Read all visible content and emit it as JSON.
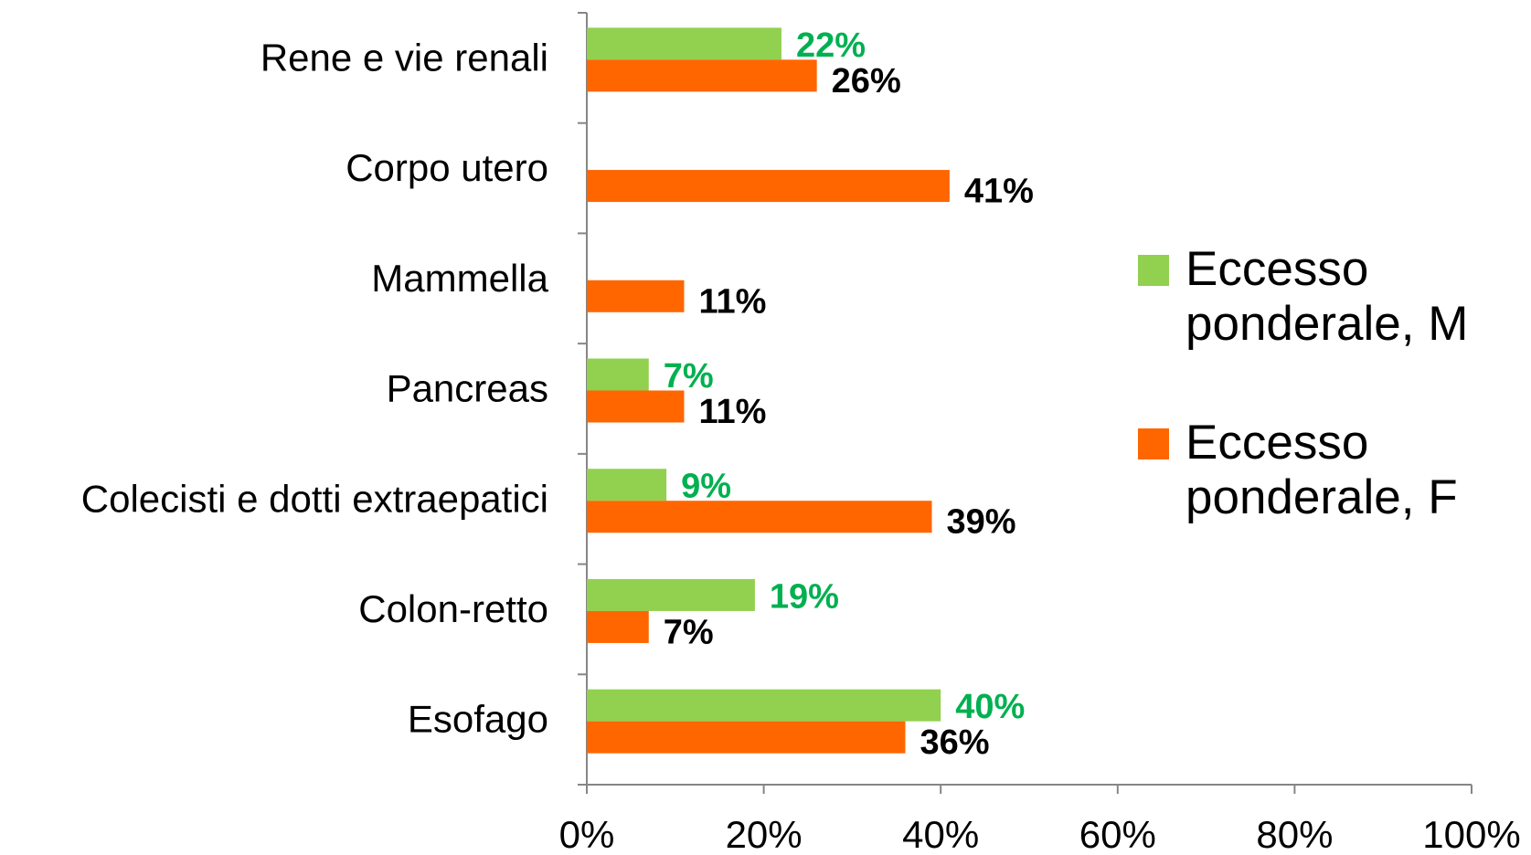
{
  "chart_data": {
    "type": "barh",
    "categories": [
      "Rene e vie renali",
      "Corpo utero",
      "Mammella",
      "Pancreas",
      "Colecisti e dotti extraepatici",
      "Colon-retto",
      "Esofago"
    ],
    "series": [
      {
        "name": "Eccesso ponderale, M",
        "color": "#92d050",
        "label_color": "#00b050",
        "values": [
          22,
          null,
          null,
          7,
          9,
          19,
          40
        ],
        "value_labels": [
          "22%",
          null,
          null,
          "7%",
          "9%",
          "19%",
          "40%"
        ]
      },
      {
        "name": "Eccesso ponderale, F",
        "color": "#ff6600",
        "label_color": "#000000",
        "values": [
          26,
          41,
          11,
          11,
          39,
          7,
          36
        ],
        "value_labels": [
          "26%",
          "41%",
          "11%",
          "11%",
          "39%",
          "7%",
          "36%"
        ]
      }
    ],
    "xlim": [
      0,
      100
    ],
    "xticks": [
      {
        "value": 0,
        "label": "0%"
      },
      {
        "value": 20,
        "label": "20%"
      },
      {
        "value": 40,
        "label": "40%"
      },
      {
        "value": 60,
        "label": "60%"
      },
      {
        "value": 80,
        "label": "80%"
      },
      {
        "value": 100,
        "label": "100%"
      }
    ],
    "legend": "right"
  }
}
